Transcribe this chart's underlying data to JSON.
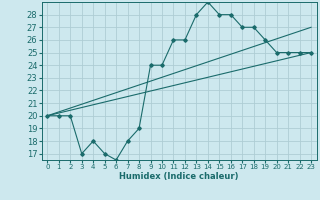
{
  "xlabel": "Humidex (Indice chaleur)",
  "bg_color": "#cde8ee",
  "grid_color": "#aecdd4",
  "line_color": "#1a6b6b",
  "line1_x": [
    0,
    1,
    2,
    3,
    4,
    5,
    6,
    7,
    8,
    9,
    10,
    11,
    12,
    13,
    14,
    15,
    16,
    17,
    18,
    19,
    20,
    21,
    22,
    23
  ],
  "line1_y": [
    20,
    20,
    20,
    17,
    18,
    17,
    16.5,
    18,
    19,
    24,
    24,
    26,
    26,
    28,
    29,
    28,
    28,
    27,
    27,
    26,
    25,
    25,
    25,
    25
  ],
  "line2_x": [
    0,
    23
  ],
  "line2_y": [
    20,
    27
  ],
  "line3_x": [
    0,
    23
  ],
  "line3_y": [
    20,
    25
  ],
  "xlim": [
    -0.5,
    23.5
  ],
  "ylim": [
    16.5,
    29
  ],
  "yticks": [
    17,
    18,
    19,
    20,
    21,
    22,
    23,
    24,
    25,
    26,
    27,
    28
  ],
  "xticks": [
    0,
    1,
    2,
    3,
    4,
    5,
    6,
    7,
    8,
    9,
    10,
    11,
    12,
    13,
    14,
    15,
    16,
    17,
    18,
    19,
    20,
    21,
    22,
    23
  ]
}
